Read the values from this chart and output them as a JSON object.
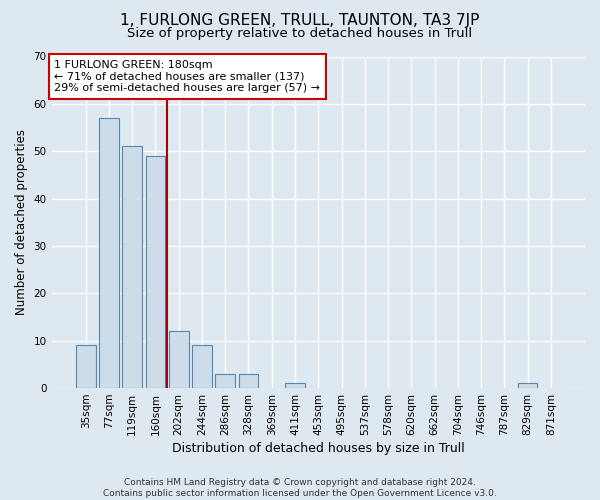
{
  "title": "1, FURLONG GREEN, TRULL, TAUNTON, TA3 7JP",
  "subtitle": "Size of property relative to detached houses in Trull",
  "xlabel": "Distribution of detached houses by size in Trull",
  "ylabel": "Number of detached properties",
  "categories": [
    "35sqm",
    "77sqm",
    "119sqm",
    "160sqm",
    "202sqm",
    "244sqm",
    "286sqm",
    "328sqm",
    "369sqm",
    "411sqm",
    "453sqm",
    "495sqm",
    "537sqm",
    "578sqm",
    "620sqm",
    "662sqm",
    "704sqm",
    "746sqm",
    "787sqm",
    "829sqm",
    "871sqm"
  ],
  "values": [
    9,
    57,
    51,
    49,
    12,
    9,
    3,
    3,
    0,
    1,
    0,
    0,
    0,
    0,
    0,
    0,
    0,
    0,
    0,
    1,
    0
  ],
  "bar_color": "#ccdce8",
  "bar_edge_color": "#5588aa",
  "background_color": "#dde8f0",
  "grid_color": "#ffffff",
  "vline_x": 3.5,
  "vline_color": "#aa0000",
  "annotation_line1": "1 FURLONG GREEN: 180sqm",
  "annotation_line2": "← 71% of detached houses are smaller (137)",
  "annotation_line3": "29% of semi-detached houses are larger (57) →",
  "annotation_box_color": "#ffffff",
  "annotation_box_edge_color": "#cc0000",
  "ylim": [
    0,
    70
  ],
  "yticks": [
    0,
    10,
    20,
    30,
    40,
    50,
    60,
    70
  ],
  "footer": "Contains HM Land Registry data © Crown copyright and database right 2024.\nContains public sector information licensed under the Open Government Licence v3.0.",
  "title_fontsize": 11,
  "subtitle_fontsize": 9.5,
  "xlabel_fontsize": 9,
  "ylabel_fontsize": 8.5,
  "tick_fontsize": 7.5,
  "annotation_fontsize": 8,
  "footer_fontsize": 6.5
}
